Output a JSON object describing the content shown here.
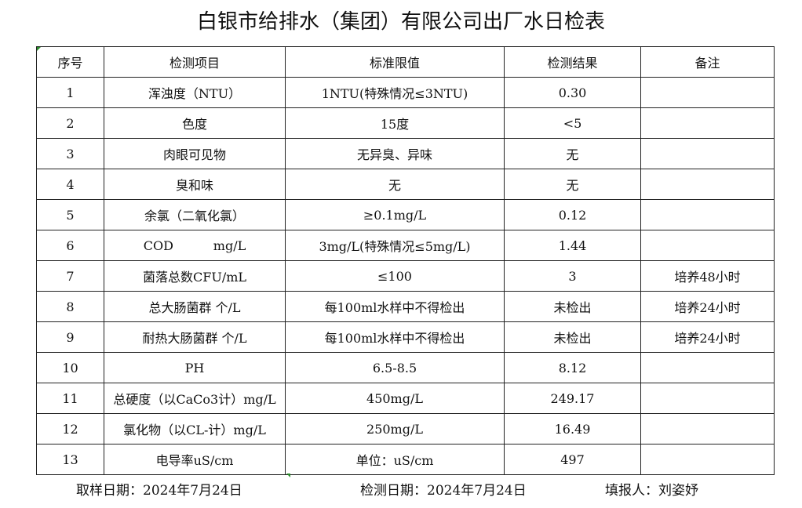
{
  "title": "白银市给排水（集团）有限公司出厂水日检表",
  "headers": [
    "序号",
    "检测项目",
    "标准限值",
    "检测结果",
    "备注"
  ],
  "rows": [
    [
      "1",
      "浑浊度（NTU）",
      "1NTU(特殊情况≤3NTU)",
      "0.30",
      ""
    ],
    [
      "2",
      "色度",
      "15度",
      "<5",
      ""
    ],
    [
      "3",
      "肉眼可见物",
      "无异臭、异味",
      "无",
      ""
    ],
    [
      "4",
      "臭和味",
      "无",
      "无",
      ""
    ],
    [
      "5",
      "余氯（二氧化氯）",
      "≥0.1mg/L",
      "0.12",
      ""
    ],
    [
      "6",
      "COD          mg/L",
      "3mg/L(特殊情况≤5mg/L)",
      "1.44",
      ""
    ],
    [
      "7",
      "菌落总数CFU/mL",
      "≤100",
      "3",
      "培养48小时"
    ],
    [
      "8",
      "总大肠菌群 个/L",
      "每100ml水样中不得检出",
      "未检出",
      "培养24小时"
    ],
    [
      "9",
      "耐热大肠菌群 个/L",
      "每100ml水样中不得检出",
      "未检出",
      "培养24小时"
    ],
    [
      "10",
      "PH",
      "6.5-8.5",
      "8.12",
      ""
    ],
    [
      "11",
      "总硬度（以CaCo3计）mg/L",
      "450mg/L",
      "249.17",
      ""
    ],
    [
      "12",
      "氯化物（以CL-计）mg/L",
      "250mg/L",
      "16.49",
      ""
    ],
    [
      "13",
      "电导率uS/cm",
      "单位：uS/cm",
      "497",
      ""
    ]
  ],
  "footer": {
    "sampling_date": "取样日期：2024年7月24日",
    "test_date": "检测日期：2024年7月24日",
    "filled_by": "填报人：刘姿妤"
  }
}
